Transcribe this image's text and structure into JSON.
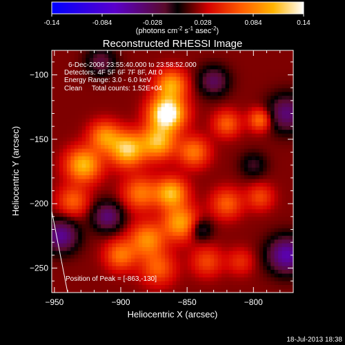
{
  "colorbar": {
    "ticks": [
      "-0.14",
      "-0.084",
      "-0.028",
      "0.028",
      "0.084",
      "0.14"
    ],
    "units_main": "(photons cm",
    "units_exp1": "-2",
    "units_mid": " s",
    "units_exp2": "-1",
    "units_end": " asec",
    "units_exp3": "-2",
    "units_close": ")"
  },
  "chart_data": {
    "type": "heatmap",
    "title": "Reconstructed RHESSI Image",
    "xlabel": "Heliocentric X (arcsec)",
    "ylabel": "Heliocentric Y (arcsec)",
    "xlim": [
      -952,
      -770
    ],
    "ylim": [
      -269,
      -81
    ],
    "x_ticks": [
      -950,
      -900,
      -850,
      -800
    ],
    "y_ticks": [
      -100,
      -150,
      -200,
      -250
    ],
    "color_range": [
      -0.14,
      0.14
    ],
    "annotations": [
      "6-Dec-2006 23:55:40.000 to 23:58:52.000",
      "Detectors: 4F 5F 6F 7F 8F, Att 0",
      "Energy Range: 3.0 - 6.0 keV",
      "Clean     Total counts: 1.52E+04"
    ],
    "peak_label": "Position of Peak = [-863,-130]",
    "peak": [
      -863,
      -130
    ],
    "sources": [
      {
        "x": -865,
        "y": -130,
        "amp": 0.14,
        "sigma": 9
      },
      {
        "x": -862,
        "y": -108,
        "amp": 0.08,
        "sigma": 8
      },
      {
        "x": -872,
        "y": -152,
        "amp": 0.09,
        "sigma": 9
      },
      {
        "x": -895,
        "y": -158,
        "amp": 0.1,
        "sigma": 9
      },
      {
        "x": -912,
        "y": -148,
        "amp": 0.07,
        "sigma": 8
      },
      {
        "x": -928,
        "y": -170,
        "amp": 0.09,
        "sigma": 9
      },
      {
        "x": -936,
        "y": -198,
        "amp": 0.05,
        "sigma": 8
      },
      {
        "x": -885,
        "y": -192,
        "amp": 0.06,
        "sigma": 9
      },
      {
        "x": -862,
        "y": -192,
        "amp": 0.09,
        "sigma": 8
      },
      {
        "x": -855,
        "y": -215,
        "amp": 0.08,
        "sigma": 9
      },
      {
        "x": -880,
        "y": -228,
        "amp": 0.07,
        "sigma": 9
      },
      {
        "x": -900,
        "y": -240,
        "amp": 0.06,
        "sigma": 8
      },
      {
        "x": -872,
        "y": -250,
        "amp": 0.05,
        "sigma": 9
      },
      {
        "x": -845,
        "y": -160,
        "amp": 0.06,
        "sigma": 8
      },
      {
        "x": -820,
        "y": -138,
        "amp": 0.05,
        "sigma": 7
      },
      {
        "x": -795,
        "y": -135,
        "amp": 0.06,
        "sigma": 6
      },
      {
        "x": -820,
        "y": -200,
        "amp": 0.05,
        "sigma": 8
      },
      {
        "x": -795,
        "y": -195,
        "amp": 0.04,
        "sigma": 7
      },
      {
        "x": -835,
        "y": -245,
        "amp": 0.04,
        "sigma": 8
      },
      {
        "x": -810,
        "y": -245,
        "amp": 0.03,
        "sigma": 7
      },
      {
        "x": -775,
        "y": -240,
        "amp": -0.08,
        "sigma": 10
      },
      {
        "x": -775,
        "y": -130,
        "amp": -0.06,
        "sigma": 10
      },
      {
        "x": -945,
        "y": -225,
        "amp": -0.07,
        "sigma": 9
      },
      {
        "x": -910,
        "y": -210,
        "amp": -0.06,
        "sigma": 8
      },
      {
        "x": -915,
        "y": -90,
        "amp": -0.04,
        "sigma": 8
      },
      {
        "x": -830,
        "y": -105,
        "amp": -0.05,
        "sigma": 8
      },
      {
        "x": -840,
        "y": -220,
        "amp": -0.04,
        "sigma": 6
      },
      {
        "x": -800,
        "y": -170,
        "amp": -0.03,
        "sigma": 7
      }
    ]
  },
  "footer": {
    "timestamp": "18-Jul-2013 18:38"
  }
}
